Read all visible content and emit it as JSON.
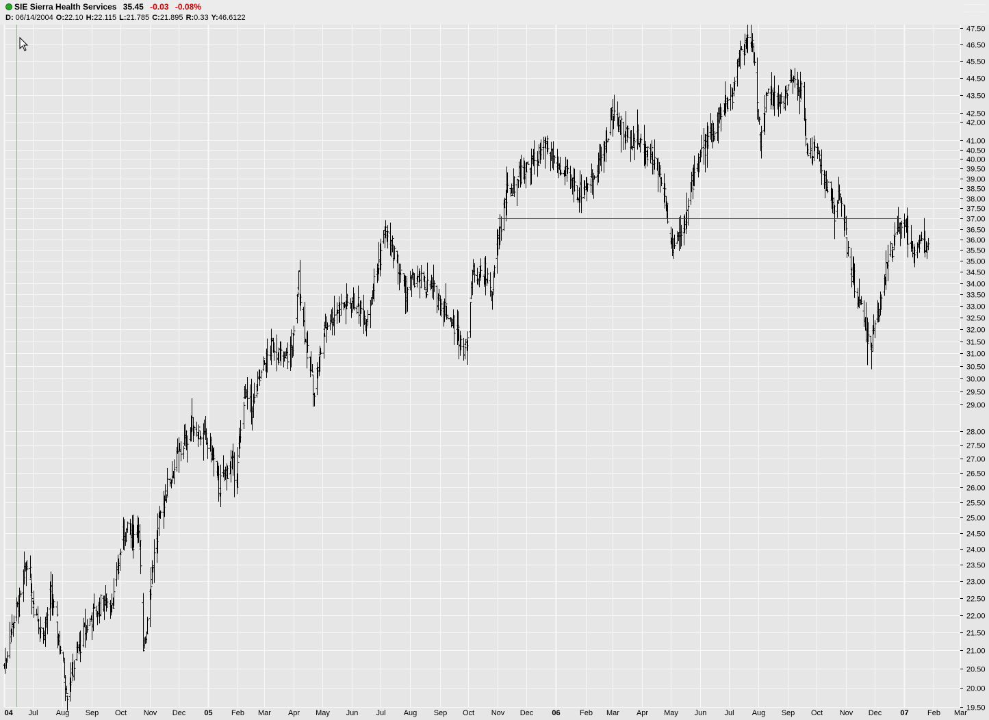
{
  "header": {
    "symbol": "SIE",
    "company": "Sierra Health Services",
    "last": "35.45",
    "change": "-0.03",
    "change_pct": "-0.08%",
    "ohlc": {
      "d_label": "D:",
      "date": "06/14/2004",
      "o_label": "O:",
      "open": "22.10",
      "h_label": "H:",
      "high": "22.115",
      "l_label": "L:",
      "low": "21.785",
      "c_label": "C:",
      "close": "21.895",
      "r_label": "R:",
      "range": "0.33",
      "y_label": "Y:",
      "y": "46.6122"
    }
  },
  "colors": {
    "background": "#e6e6e6",
    "grid": "#f8f8f8",
    "bars": "#000000",
    "trendline": "#5a2a7a",
    "negative": "#d40000"
  },
  "chart_data": {
    "type": "ohlc-bar",
    "title": "SIE Sierra Health Services",
    "scale": "log",
    "ylim": [
      19.5,
      47.5
    ],
    "y_ticks": [
      "47.50",
      "46.50",
      "45.50",
      "44.50",
      "43.50",
      "42.50",
      "42.00",
      "41.00",
      "40.50",
      "40.00",
      "39.50",
      "39.00",
      "38.50",
      "38.00",
      "37.50",
      "37.00",
      "36.50",
      "36.00",
      "35.50",
      "35.00",
      "34.50",
      "34.00",
      "33.50",
      "33.00",
      "32.50",
      "32.00",
      "31.50",
      "31.00",
      "30.50",
      "30.00",
      "29.50",
      "29.00",
      "28.00",
      "27.50",
      "27.00",
      "26.50",
      "26.00",
      "25.50",
      "25.00",
      "24.50",
      "24.00",
      "23.50",
      "23.00",
      "22.50",
      "22.00",
      "21.50",
      "21.00",
      "20.50",
      "20.00",
      "19.50"
    ],
    "x_range": [
      "2004-06-01",
      "2007-03-01"
    ],
    "x_ticks": [
      {
        "label": "04",
        "date": "2004-06-01",
        "year": true
      },
      {
        "label": "Jul",
        "date": "2004-07-01"
      },
      {
        "label": "Aug",
        "date": "2004-08-01"
      },
      {
        "label": "Sep",
        "date": "2004-09-01"
      },
      {
        "label": "Oct",
        "date": "2004-10-01"
      },
      {
        "label": "Nov",
        "date": "2004-11-01"
      },
      {
        "label": "Dec",
        "date": "2004-12-01"
      },
      {
        "label": "05",
        "date": "2005-01-01",
        "year": true
      },
      {
        "label": "Feb",
        "date": "2005-02-01"
      },
      {
        "label": "Mar",
        "date": "2005-03-01"
      },
      {
        "label": "Apr",
        "date": "2005-04-01"
      },
      {
        "label": "May",
        "date": "2005-05-01"
      },
      {
        "label": "Jun",
        "date": "2005-06-01"
      },
      {
        "label": "Jul",
        "date": "2005-07-01"
      },
      {
        "label": "Aug",
        "date": "2005-08-01"
      },
      {
        "label": "Sep",
        "date": "2005-09-01"
      },
      {
        "label": "Oct",
        "date": "2005-10-01"
      },
      {
        "label": "Nov",
        "date": "2005-11-01"
      },
      {
        "label": "Dec",
        "date": "2005-12-01"
      },
      {
        "label": "06",
        "date": "2006-01-01",
        "year": true
      },
      {
        "label": "Feb",
        "date": "2006-02-01"
      },
      {
        "label": "Mar",
        "date": "2006-03-01"
      },
      {
        "label": "Apr",
        "date": "2006-04-01"
      },
      {
        "label": "May",
        "date": "2006-05-01"
      },
      {
        "label": "Jun",
        "date": "2006-06-01"
      },
      {
        "label": "Jul",
        "date": "2006-07-01"
      },
      {
        "label": "Aug",
        "date": "2006-08-01"
      },
      {
        "label": "Sep",
        "date": "2006-09-01"
      },
      {
        "label": "Oct",
        "date": "2006-10-01"
      },
      {
        "label": "Nov",
        "date": "2006-11-01"
      },
      {
        "label": "Dec",
        "date": "2006-12-01"
      },
      {
        "label": "07",
        "date": "2007-01-01",
        "year": true
      },
      {
        "label": "Feb",
        "date": "2007-02-01"
      },
      {
        "label": "Mar",
        "date": "2007-03-01"
      }
    ],
    "grid": true,
    "cursor_date": "2004-06-14",
    "trendline": {
      "y": 37.0,
      "x_start": "2005-11-01",
      "x_end": "2006-12-29"
    },
    "price_path": [
      [
        "2004-06-01",
        20.6
      ],
      [
        "2004-06-10",
        21.8
      ],
      [
        "2004-06-18",
        22.4
      ],
      [
        "2004-06-25",
        23.7
      ],
      [
        "2004-07-02",
        22.3
      ],
      [
        "2004-07-12",
        21.4
      ],
      [
        "2004-07-20",
        22.6
      ],
      [
        "2004-07-28",
        21.4
      ],
      [
        "2004-08-06",
        19.9
      ],
      [
        "2004-08-16",
        20.9
      ],
      [
        "2004-08-27",
        21.7
      ],
      [
        "2004-09-10",
        22.3
      ],
      [
        "2004-09-24",
        22.5
      ],
      [
        "2004-10-04",
        24.6
      ],
      [
        "2004-10-14",
        24.3
      ],
      [
        "2004-10-20",
        24.9
      ],
      [
        "2004-10-25",
        20.8
      ],
      [
        "2004-11-03",
        23.4
      ],
      [
        "2004-11-15",
        25.6
      ],
      [
        "2004-11-25",
        26.6
      ],
      [
        "2004-12-08",
        27.7
      ],
      [
        "2004-12-17",
        28.3
      ],
      [
        "2005-01-05",
        27.2
      ],
      [
        "2005-01-12",
        26.0
      ],
      [
        "2005-01-25",
        26.9
      ],
      [
        "2005-01-31",
        26.3
      ],
      [
        "2005-02-07",
        29.3
      ],
      [
        "2005-02-16",
        28.8
      ],
      [
        "2005-02-28",
        30.5
      ],
      [
        "2005-03-10",
        31.4
      ],
      [
        "2005-03-22",
        30.6
      ],
      [
        "2005-04-01",
        31.6
      ],
      [
        "2005-04-06",
        34.2
      ],
      [
        "2005-04-14",
        31.1
      ],
      [
        "2005-04-22",
        29.6
      ],
      [
        "2005-05-04",
        32.2
      ],
      [
        "2005-05-18",
        32.9
      ],
      [
        "2005-06-03",
        33.2
      ],
      [
        "2005-06-15",
        32.5
      ],
      [
        "2005-06-27",
        34.5
      ],
      [
        "2005-07-05",
        36.4
      ],
      [
        "2005-07-15",
        35.4
      ],
      [
        "2005-07-26",
        33.6
      ],
      [
        "2005-08-05",
        34.1
      ],
      [
        "2005-08-22",
        33.8
      ],
      [
        "2005-09-07",
        32.9
      ],
      [
        "2005-09-28",
        31.2
      ],
      [
        "2005-10-06",
        34.6
      ],
      [
        "2005-10-18",
        34.4
      ],
      [
        "2005-10-26",
        33.7
      ],
      [
        "2005-11-01",
        35.9
      ],
      [
        "2005-11-10",
        38.2
      ],
      [
        "2005-11-25",
        39.3
      ],
      [
        "2005-12-09",
        39.9
      ],
      [
        "2005-12-22",
        40.6
      ],
      [
        "2006-01-09",
        39.2
      ],
      [
        "2006-01-25",
        38.3
      ],
      [
        "2006-02-08",
        39.1
      ],
      [
        "2006-02-20",
        40.4
      ],
      [
        "2006-03-01",
        42.6
      ],
      [
        "2006-03-14",
        41.3
      ],
      [
        "2006-03-28",
        41.0
      ],
      [
        "2006-04-11",
        40.2
      ],
      [
        "2006-04-24",
        38.6
      ],
      [
        "2006-05-02",
        35.8
      ],
      [
        "2006-05-11",
        36.4
      ],
      [
        "2006-05-19",
        37.4
      ],
      [
        "2006-05-26",
        39.6
      ],
      [
        "2006-06-08",
        40.9
      ],
      [
        "2006-06-22",
        42.4
      ],
      [
        "2006-07-05",
        43.6
      ],
      [
        "2006-07-12",
        46.1
      ],
      [
        "2006-07-20",
        46.7
      ],
      [
        "2006-07-27",
        46.0
      ],
      [
        "2006-08-03",
        41.1
      ],
      [
        "2006-08-10",
        43.7
      ],
      [
        "2006-08-24",
        42.9
      ],
      [
        "2006-09-05",
        44.3
      ],
      [
        "2006-09-15",
        43.6
      ],
      [
        "2006-09-22",
        40.4
      ],
      [
        "2006-10-02",
        40.5
      ],
      [
        "2006-10-11",
        38.7
      ],
      [
        "2006-10-20",
        37.4
      ],
      [
        "2006-10-27",
        38.2
      ],
      [
        "2006-11-03",
        35.3
      ],
      [
        "2006-11-10",
        33.9
      ],
      [
        "2006-11-20",
        32.2
      ],
      [
        "2006-11-27",
        31.3
      ],
      [
        "2006-12-04",
        32.6
      ],
      [
        "2006-12-11",
        34.4
      ],
      [
        "2006-12-20",
        35.6
      ],
      [
        "2006-12-29",
        36.8
      ],
      [
        "2007-01-05",
        36.1
      ],
      [
        "2007-01-12",
        35.6
      ],
      [
        "2007-01-19",
        35.9
      ],
      [
        "2007-01-26",
        35.45
      ]
    ]
  }
}
